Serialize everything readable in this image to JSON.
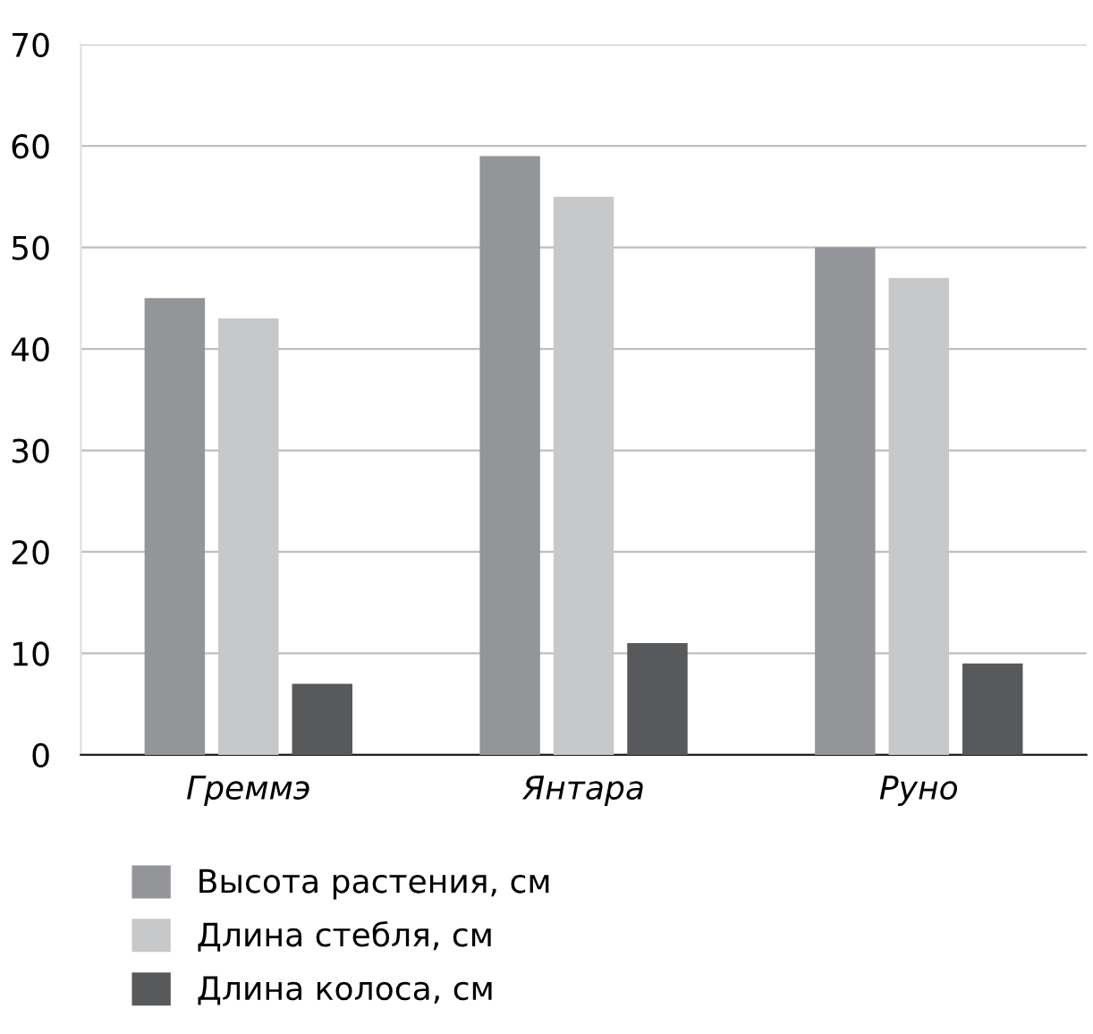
{
  "chart_data": {
    "type": "bar",
    "categories": [
      "Греммэ",
      "Янтара",
      "Руно"
    ],
    "series": [
      {
        "name": "Высота растения, см",
        "color": "#939598",
        "values": [
          45,
          59,
          50
        ]
      },
      {
        "name": "Длина стебля, см",
        "color": "#c7c8ca",
        "values": [
          43,
          55,
          47
        ]
      },
      {
        "name": "Длина колоса, см",
        "color": "#58595b",
        "values": [
          7,
          11,
          9
        ]
      }
    ],
    "ylim": [
      0,
      70
    ],
    "yticks": [
      0,
      10,
      20,
      30,
      40,
      50,
      60,
      70
    ],
    "grid": "y",
    "legend": "bottom"
  }
}
